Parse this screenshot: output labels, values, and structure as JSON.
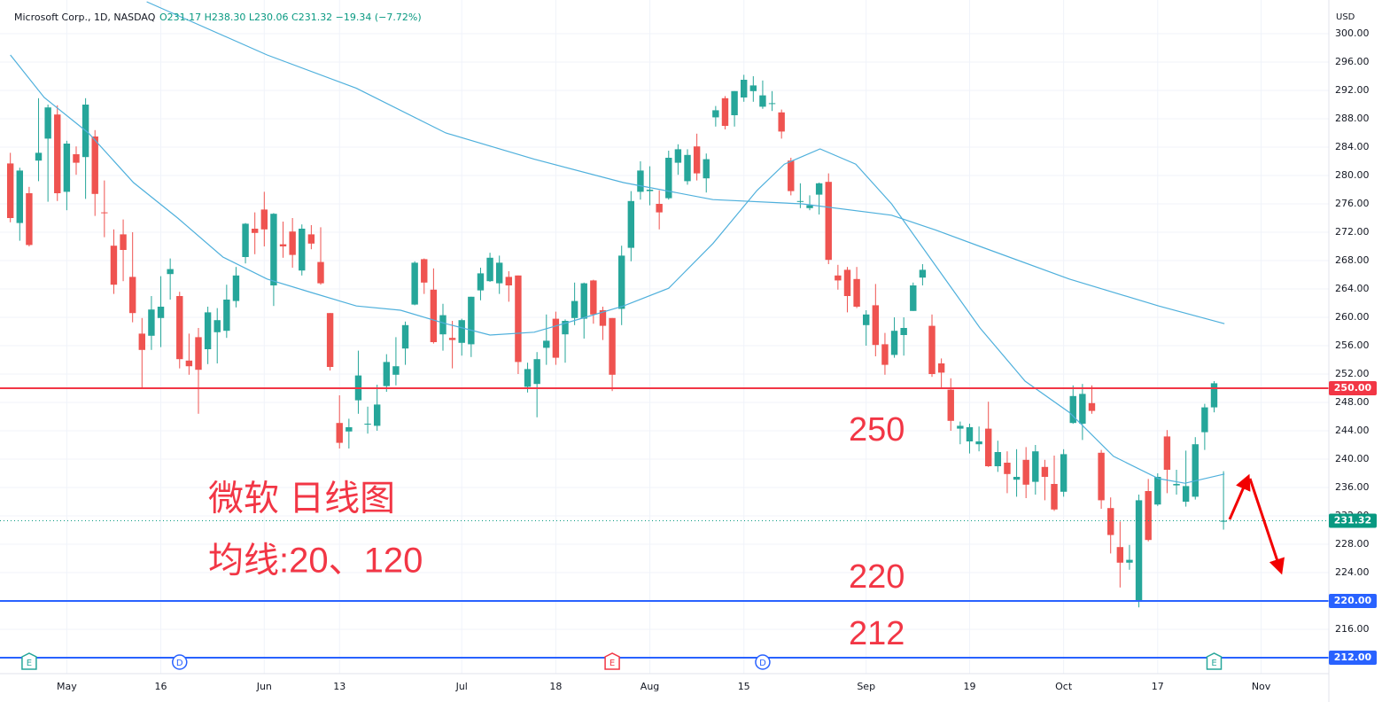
{
  "chart_data": {
    "type": "candlestick",
    "title": "Microsoft Corp., 1D, NASDAQ",
    "ohlc_text": "O231.17 H238.30 L230.06 C231.32 −19.34 (−7.72%)",
    "currency": "USD",
    "up_color": "#26a69a",
    "down_color": "#ef5350",
    "grid": true,
    "ylim": [
      209.75,
      304.75
    ],
    "yticks": [
      {
        "value": 300,
        "label": "300.00"
      },
      {
        "value": 296,
        "label": "296.00"
      },
      {
        "value": 292,
        "label": "292.00"
      },
      {
        "value": 288,
        "label": "288.00"
      },
      {
        "value": 284,
        "label": "284.00"
      },
      {
        "value": 280,
        "label": "280.00"
      },
      {
        "value": 276,
        "label": "276.00"
      },
      {
        "value": 272,
        "label": "272.00"
      },
      {
        "value": 268,
        "label": "268.00"
      },
      {
        "value": 264,
        "label": "264.00"
      },
      {
        "value": 260,
        "label": "260.00"
      },
      {
        "value": 256,
        "label": "256.00"
      },
      {
        "value": 252,
        "label": "252.00"
      },
      {
        "value": 248,
        "label": "248.00"
      },
      {
        "value": 244,
        "label": "244.00"
      },
      {
        "value": 240,
        "label": "240.00"
      },
      {
        "value": 236,
        "label": "236.00"
      },
      {
        "value": 232,
        "label": "232.00"
      },
      {
        "value": 228,
        "label": "228.00"
      },
      {
        "value": 224,
        "label": "224.00"
      },
      {
        "value": 220,
        "label": "220.00"
      },
      {
        "value": 216,
        "label": "216.00"
      }
    ],
    "xlim": [
      -1.1,
      140.2
    ],
    "xticks": [
      {
        "value": 6,
        "label": "May"
      },
      {
        "value": 16,
        "label": "16"
      },
      {
        "value": 27,
        "label": "Jun"
      },
      {
        "value": 35,
        "label": "13"
      },
      {
        "value": 48,
        "label": "Jul"
      },
      {
        "value": 58,
        "label": "18"
      },
      {
        "value": 68,
        "label": "Aug"
      },
      {
        "value": 78,
        "label": "15"
      },
      {
        "value": 91,
        "label": "Sep"
      },
      {
        "value": 102,
        "label": "19"
      },
      {
        "value": 112,
        "label": "Oct"
      },
      {
        "value": 122,
        "label": "17"
      },
      {
        "value": 133,
        "label": "Nov"
      }
    ],
    "open": [
      281.7,
      273.3,
      277.5,
      282.1,
      285.2,
      288.6,
      277.7,
      283.0,
      282.6,
      285.5,
      274.8,
      270.1,
      271.7,
      265.7,
      257.7,
      257.4,
      259.9,
      266.1,
      263.0,
      253.9,
      257.2,
      255.5,
      257.9,
      258.1,
      262.3,
      268.5,
      272.5,
      275.2,
      264.5,
      270.3,
      272.1,
      266.6,
      271.7,
      267.8,
      260.6,
      245.1,
      243.9,
      248.3,
      245.0,
      244.7,
      250.3,
      251.9,
      255.6,
      261.8,
      268.2,
      263.9,
      257.6,
      257.1,
      256.4,
      256.2,
      263.8,
      265.1,
      264.8,
      265.7,
      265.9,
      250.2,
      250.6,
      255.7,
      259.8,
      257.6,
      259.9,
      259.8,
      265.2,
      261.0,
      259.9,
      261.2,
      269.8,
      277.7,
      277.8,
      276.0,
      276.8,
      281.8,
      279.2,
      284.1,
      279.6,
      288.2,
      290.9,
      288.5,
      291.0,
      291.9,
      289.7,
      290.2,
      288.9,
      282.1,
      276.4,
      275.4,
      277.3,
      279.1,
      265.9,
      266.7,
      265.4,
      258.9,
      261.7,
      256.2,
      254.7,
      257.5,
      260.9,
      265.6,
      258.8,
      253.5,
      249.8,
      244.3,
      242.5,
      242.1,
      244.3,
      239.0,
      239.5,
      237.1,
      239.9,
      236.8,
      238.9,
      236.5,
      235.4,
      245.1,
      245.0,
      247.9,
      240.9,
      233.1,
      227.6,
      225.4,
      220.0,
      235.5,
      233.6,
      243.2,
      236.3,
      234.0,
      234.7,
      243.8,
      247.3,
      231.17
    ],
    "high": [
      283.2,
      281.1,
      278.4,
      290.9,
      290.0,
      289.9,
      284.9,
      284.1,
      290.9,
      286.4,
      279.3,
      272.4,
      273.8,
      272.0,
      259.9,
      263.0,
      265.8,
      268.3,
      263.6,
      257.7,
      258.5,
      261.5,
      261.3,
      264.6,
      267.1,
      273.3,
      274.8,
      277.7,
      274.7,
      273.5,
      274.0,
      273.1,
      273.0,
      272.7,
      260.6,
      249.0,
      245.7,
      255.3,
      247.4,
      250.5,
      254.8,
      257.2,
      259.4,
      267.9,
      268.3,
      266.9,
      261.9,
      259.5,
      259.8,
      262.9,
      267.0,
      269.1,
      268.7,
      266.5,
      265.9,
      253.6,
      255.1,
      260.4,
      260.8,
      259.7,
      264.9,
      264.9,
      265.3,
      261.5,
      259.9,
      270.1,
      277.8,
      282.0,
      281.3,
      277.9,
      283.5,
      284.4,
      283.7,
      285.9,
      283.1,
      289.8,
      291.2,
      291.9,
      294.2,
      294.0,
      293.4,
      291.9,
      289.3,
      282.5,
      278.9,
      277.2,
      279.0,
      280.3,
      267.4,
      267.1,
      267.1,
      261.0,
      264.7,
      257.8,
      260.0,
      260.0,
      264.9,
      267.5,
      260.4,
      254.2,
      251.4,
      245.3,
      245.0,
      244.6,
      248.1,
      242.6,
      241.1,
      241.4,
      241.7,
      242.0,
      239.9,
      240.5,
      241.4,
      250.4,
      250.6,
      250.4,
      241.3,
      234.6,
      231.2,
      227.9,
      235.0,
      237.2,
      238.0,
      244.1,
      238.5,
      241.2,
      243.1,
      247.8,
      251.0,
      238.3
    ],
    "low": [
      273.4,
      270.8,
      270.0,
      279.2,
      276.3,
      276.4,
      275.1,
      280.1,
      276.7,
      274.3,
      271.3,
      263.3,
      265.1,
      259.3,
      250.0,
      255.4,
      255.8,
      262.5,
      252.8,
      251.9,
      246.4,
      253.4,
      253.5,
      257.1,
      261.4,
      267.6,
      268.9,
      270.0,
      261.6,
      268.4,
      267.0,
      265.9,
      269.6,
      264.6,
      252.5,
      241.5,
      241.5,
      246.4,
      243.6,
      244.0,
      249.5,
      250.4,
      253.3,
      261.7,
      263.3,
      256.3,
      255.3,
      252.8,
      254.6,
      254.4,
      262.4,
      265.0,
      263.3,
      262.2,
      252.0,
      249.4,
      245.9,
      253.3,
      253.3,
      253.6,
      258.9,
      257.0,
      259.1,
      256.8,
      249.6,
      258.9,
      267.9,
      276.6,
      275.8,
      272.4,
      276.6,
      280.1,
      278.7,
      279.3,
      277.6,
      286.9,
      286.5,
      286.9,
      290.4,
      290.4,
      289.4,
      289.1,
      285.2,
      277.2,
      275.4,
      275.1,
      274.5,
      267.5,
      263.9,
      260.7,
      261.3,
      256.0,
      254.5,
      251.9,
      254.3,
      254.6,
      260.9,
      264.5,
      251.6,
      249.9,
      244.0,
      242.1,
      240.8,
      241.1,
      238.9,
      238.2,
      235.2,
      234.7,
      234.5,
      235.0,
      234.2,
      232.7,
      234.7,
      244.98,
      242.7,
      246.4,
      233.0,
      226.7,
      221.9,
      224.4,
      219.1,
      228.4,
      233.4,
      235.2,
      235.0,
      233.3,
      234.3,
      241.3,
      246.6,
      230.06
    ],
    "close": [
      274.0,
      280.7,
      270.2,
      283.2,
      289.6,
      277.5,
      284.5,
      281.8,
      290.0,
      277.4,
      274.7,
      264.6,
      269.5,
      260.6,
      255.4,
      261.1,
      261.5,
      266.8,
      254.1,
      253.1,
      252.6,
      260.7,
      259.6,
      262.5,
      265.9,
      273.2,
      271.9,
      272.4,
      274.6,
      270.0,
      268.8,
      272.5,
      270.4,
      264.8,
      253.0,
      242.3,
      244.5,
      251.8,
      245.0,
      247.7,
      253.7,
      253.1,
      258.9,
      267.7,
      264.9,
      256.5,
      260.3,
      256.8,
      259.6,
      262.9,
      266.2,
      268.4,
      267.7,
      264.5,
      253.7,
      252.7,
      254.1,
      256.7,
      254.3,
      259.5,
      262.3,
      264.8,
      260.4,
      258.8,
      251.9,
      268.7,
      276.4,
      280.7,
      278.0,
      274.8,
      282.5,
      283.7,
      282.9,
      280.3,
      282.3,
      289.2,
      287.0,
      291.9,
      293.5,
      292.7,
      291.3,
      290.2,
      286.2,
      277.8,
      276.4,
      275.8,
      278.9,
      268.1,
      265.2,
      263.0,
      261.5,
      260.4,
      256.1,
      253.3,
      258.1,
      258.5,
      264.5,
      266.7,
      252.0,
      252.2,
      245.4,
      244.7,
      244.5,
      242.5,
      239.0,
      241.0,
      237.9,
      237.5,
      236.4,
      241.1,
      237.5,
      232.9,
      240.7,
      248.9,
      249.2,
      246.8,
      234.2,
      229.3,
      225.4,
      225.8,
      234.2,
      228.6,
      237.5,
      238.5,
      236.5,
      236.2,
      242.1,
      247.3,
      250.7,
      231.32
    ],
    "lines": [
      {
        "color": "#4fb0dc",
        "x": [
          0,
          3.6,
          8.3,
          13.1,
          17.8,
          22.6,
          27.3,
          32,
          36.8,
          41.5,
          46.3,
          51,
          55.7,
          60.5,
          65.2,
          70,
          74.7,
          79.4,
          82.3,
          86.1,
          89.9,
          93.7,
          98.4,
          103.1,
          107.9,
          112.6,
          117.3,
          122.1,
          124.9,
          129.1
        ],
        "values": [
          297.0,
          291.0,
          286.0,
          279.0,
          274.0,
          268.5,
          265.4,
          263.5,
          261.6,
          261.0,
          259.1,
          257.5,
          257.9,
          259.75,
          261.6,
          264.1,
          270.4,
          277.9,
          281.6,
          283.75,
          281.6,
          276.0,
          267.25,
          258.5,
          251.0,
          246.6,
          240.4,
          237.25,
          236.6,
          237.9
        ]
      },
      {
        "color": "#4fb0dc",
        "x": [
          14.5,
          27.3,
          36.8,
          46.3,
          55.7,
          65.2,
          74.7,
          84.2,
          93.7,
          98.4,
          103.1,
          112.6,
          122.1,
          129.1
        ],
        "values": [
          304.5,
          297.0,
          292.3,
          286.0,
          282.3,
          279.0,
          276.6,
          276.0,
          274.4,
          272.3,
          270.0,
          265.4,
          261.6,
          259.1
        ]
      }
    ],
    "levels": [
      {
        "value": 250,
        "label": "250.00",
        "color": "#f23645"
      },
      {
        "value": 220,
        "label": "220.00",
        "color": "#2962ff"
      },
      {
        "value": 212,
        "label": "212.00",
        "color": "#2962ff"
      }
    ],
    "last_price": {
      "value": 231.32,
      "label": "231.32",
      "color": "#089981"
    },
    "events": [
      {
        "label": "E",
        "x": 2,
        "color": "#26a69a"
      },
      {
        "label": "D",
        "x": 18,
        "color": "#2962ff"
      },
      {
        "label": "E",
        "x": 64,
        "color": "#f23645"
      },
      {
        "label": "D",
        "x": 80,
        "color": "#2962ff"
      },
      {
        "label": "E",
        "x": 128,
        "color": "#26a69a"
      }
    ],
    "annotations": [
      "250",
      "220",
      "212"
    ],
    "note_title": "微软 日线图",
    "note_ma": "均线:20、120"
  }
}
